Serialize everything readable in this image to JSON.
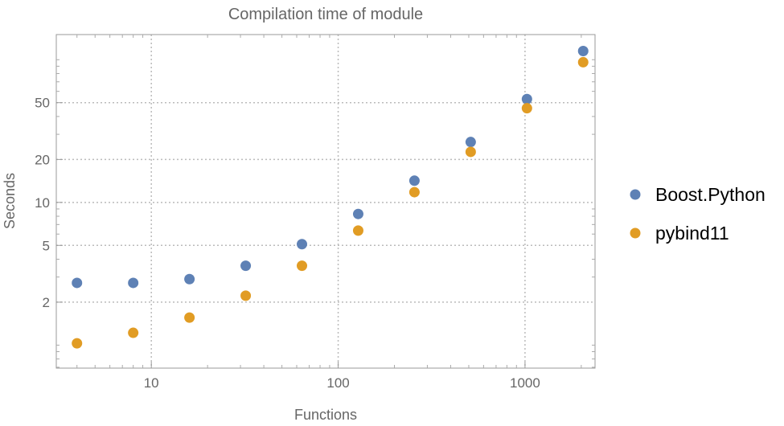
{
  "chart_data": {
    "type": "scatter",
    "title": "Compilation time of module",
    "xlabel": "Functions",
    "ylabel": "Seconds",
    "xscale": "log",
    "yscale": "log",
    "xlim": [
      3.1,
      2370
    ],
    "ylim": [
      0.69,
      150
    ],
    "grid": true,
    "legend_position": "right",
    "x_ticks": [
      10,
      100,
      1000
    ],
    "x_tick_labels": [
      "10",
      "100",
      "1000"
    ],
    "y_ticks": [
      2,
      5,
      10,
      20,
      50
    ],
    "y_tick_labels": [
      "2",
      "5",
      "10",
      "20",
      "50"
    ],
    "x": [
      4,
      8,
      16,
      32,
      64,
      128,
      256,
      512,
      1024,
      2048
    ],
    "series": [
      {
        "name": "Boost.Python",
        "color": "#5e81b5",
        "values": [
          2.73,
          2.73,
          2.9,
          3.6,
          5.1,
          8.3,
          14.2,
          26.5,
          53,
          115
        ]
      },
      {
        "name": "pybind11",
        "color": "#e19c24",
        "values": [
          1.03,
          1.22,
          1.56,
          2.22,
          3.6,
          6.35,
          11.8,
          22.6,
          45.7,
          96
        ]
      }
    ]
  }
}
